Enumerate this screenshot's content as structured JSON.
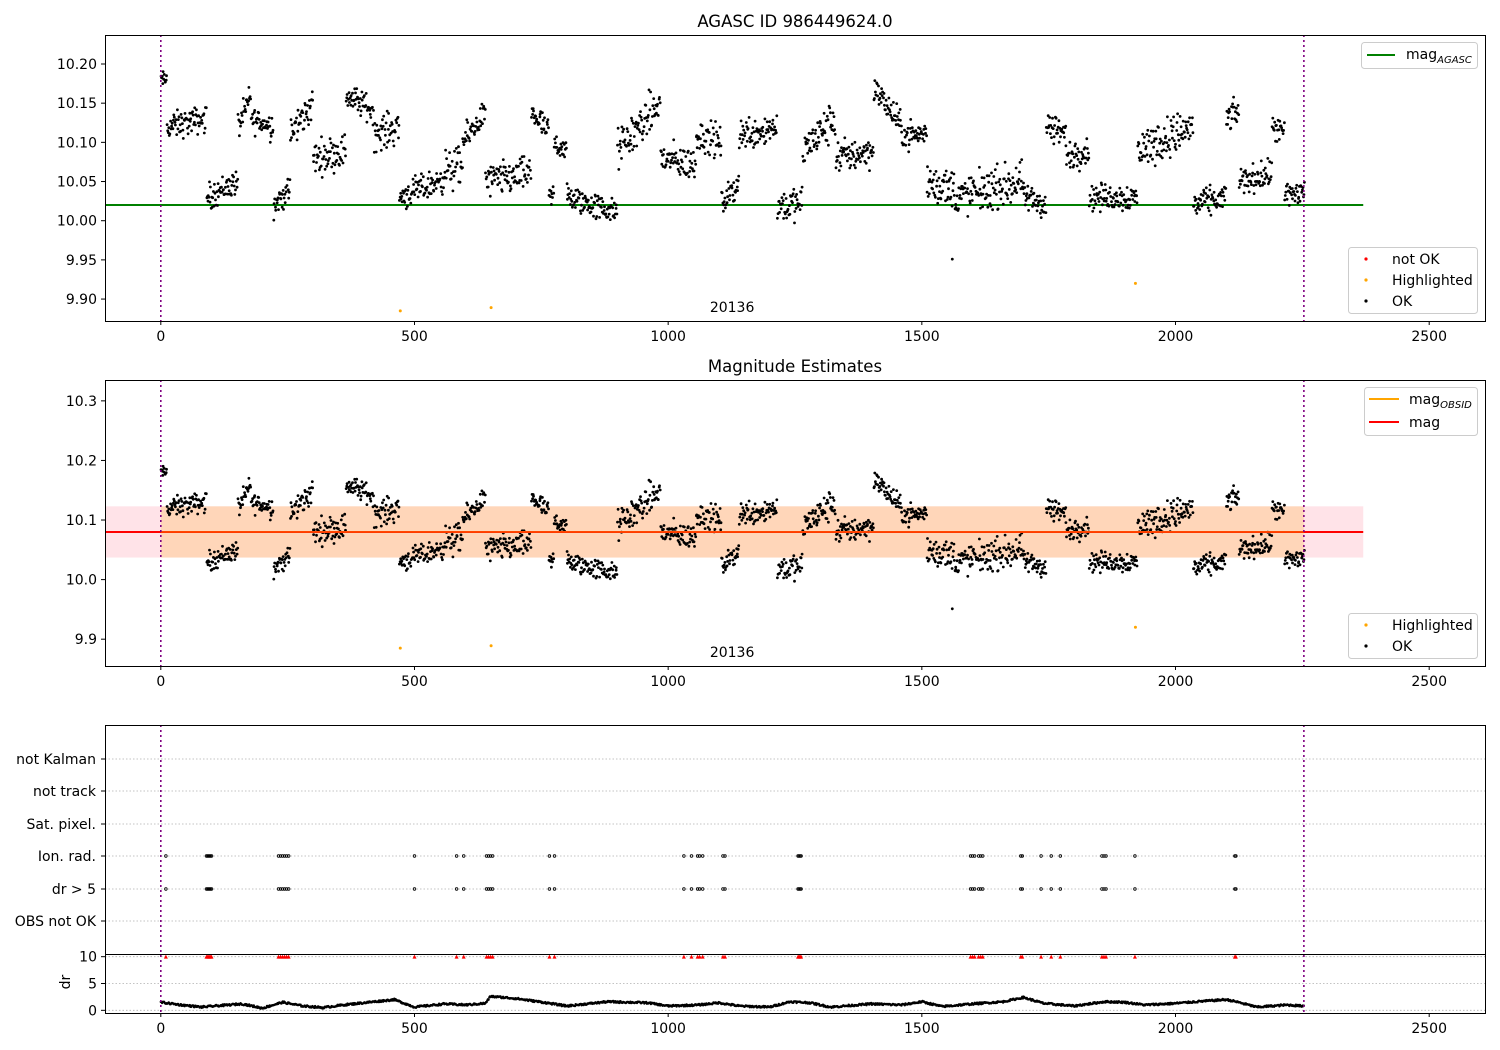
{
  "chart_data": [
    {
      "type": "scatter",
      "title": "AGASC ID 986449624.0",
      "xlabel": "",
      "ylabel": "",
      "xlim": [
        -110,
        2610
      ],
      "ylim": [
        9.872,
        10.237
      ],
      "xticks": [
        0,
        500,
        1000,
        1500,
        2000,
        2500
      ],
      "xtick_labels": [
        "0",
        "500",
        "1000",
        "1500",
        "2000",
        "2500"
      ],
      "yticks": [
        9.9,
        9.95,
        10.0,
        10.05,
        10.1,
        10.15,
        10.2
      ],
      "ytick_labels": [
        "9.90",
        "9.95",
        "10.00",
        "10.05",
        "10.10",
        "10.15",
        "10.20"
      ],
      "grid": false,
      "hline": {
        "name": "mag_AGASC",
        "value": 10.02,
        "x_range": [
          -110,
          2370
        ],
        "color": "#008000"
      },
      "obsid_boundaries": [
        0,
        2253
      ],
      "obsid_label": {
        "text": "20136",
        "x": 1126
      },
      "legend_upper": {
        "placement": "upper right",
        "entries": [
          {
            "label": "mag",
            "subscript": "AGASC",
            "kind": "line",
            "color": "#008000"
          }
        ]
      },
      "legend_lower": {
        "placement": "lower right",
        "entries": [
          {
            "label": "not OK",
            "kind": "point",
            "color": "#ff0000"
          },
          {
            "label": "Highlighted",
            "kind": "point",
            "color": "#ffa500"
          },
          {
            "label": "OK",
            "kind": "point",
            "color": "#000000"
          }
        ]
      },
      "series": [
        {
          "name": "Highlighted",
          "color": "#ffa500",
          "x": [
            472,
            651,
            1921
          ],
          "y": [
            9.885,
            9.889,
            9.92
          ]
        },
        {
          "name": "OK",
          "color": "#000000",
          "outlier": {
            "x": 1560,
            "y": 9.951
          },
          "segments": [
            {
              "x": [
                0,
                12
              ],
              "y": [
                10.18,
                10.18
              ],
              "spread": 0.012
            },
            {
              "x": [
                12,
                90
              ],
              "y": [
                10.12,
                10.13
              ],
              "spread": 0.02
            },
            {
              "x": [
                90,
                152
              ],
              "y": [
                10.03,
                10.05
              ],
              "spread": 0.02
            },
            {
              "x": [
                152,
                178
              ],
              "y": [
                10.12,
                10.16
              ],
              "spread": 0.02
            },
            {
              "x": [
                178,
                222
              ],
              "y": [
                10.13,
                10.12
              ],
              "spread": 0.02
            },
            {
              "x": [
                222,
                255
              ],
              "y": [
                10.02,
                10.04
              ],
              "spread": 0.02
            },
            {
              "x": [
                255,
                300
              ],
              "y": [
                10.11,
                10.15
              ],
              "spread": 0.025
            },
            {
              "x": [
                300,
                365
              ],
              "y": [
                10.08,
                10.09
              ],
              "spread": 0.025
            },
            {
              "x": [
                365,
                420
              ],
              "y": [
                10.16,
                10.14
              ],
              "spread": 0.02
            },
            {
              "x": [
                420,
                470
              ],
              "y": [
                10.11,
                10.12
              ],
              "spread": 0.025
            },
            {
              "x": [
                470,
                550
              ],
              "y": [
                10.03,
                10.05
              ],
              "spread": 0.02
            },
            {
              "x": [
                550,
                595
              ],
              "y": [
                10.06,
                10.07
              ],
              "spread": 0.03
            },
            {
              "x": [
                595,
                640
              ],
              "y": [
                10.1,
                10.14
              ],
              "spread": 0.02
            },
            {
              "x": [
                640,
                730
              ],
              "y": [
                10.05,
                10.06
              ],
              "spread": 0.025
            },
            {
              "x": [
                730,
                765
              ],
              "y": [
                10.14,
                10.11
              ],
              "spread": 0.02
            },
            {
              "x": [
                765,
                775
              ],
              "y": [
                10.03,
                10.03
              ],
              "spread": 0.02
            },
            {
              "x": [
                775,
                800
              ],
              "y": [
                10.1,
                10.09
              ],
              "spread": 0.02
            },
            {
              "x": [
                800,
                900
              ],
              "y": [
                10.03,
                10.01
              ],
              "spread": 0.02
            },
            {
              "x": [
                900,
                985
              ],
              "y": [
                10.09,
                10.15
              ],
              "spread": 0.03
            },
            {
              "x": [
                985,
                1055
              ],
              "y": [
                10.08,
                10.07
              ],
              "spread": 0.025
            },
            {
              "x": [
                1055,
                1105
              ],
              "y": [
                10.11,
                10.1
              ],
              "spread": 0.025
            },
            {
              "x": [
                1105,
                1140
              ],
              "y": [
                10.02,
                10.05
              ],
              "spread": 0.02
            },
            {
              "x": [
                1140,
                1215
              ],
              "y": [
                10.11,
                10.12
              ],
              "spread": 0.025
            },
            {
              "x": [
                1215,
                1265
              ],
              "y": [
                10.02,
                10.02
              ],
              "spread": 0.025
            },
            {
              "x": [
                1265,
                1330
              ],
              "y": [
                10.09,
                10.13
              ],
              "spread": 0.03
            },
            {
              "x": [
                1330,
                1405
              ],
              "y": [
                10.08,
                10.09
              ],
              "spread": 0.025
            },
            {
              "x": [
                1405,
                1460
              ],
              "y": [
                10.17,
                10.12
              ],
              "spread": 0.02
            },
            {
              "x": [
                1460,
                1510
              ],
              "y": [
                10.11,
                10.11
              ],
              "spread": 0.02
            },
            {
              "x": [
                1510,
                1565
              ],
              "y": [
                10.05,
                10.04
              ],
              "spread": 0.03
            },
            {
              "x": [
                1565,
                1700
              ],
              "y": [
                10.03,
                10.05
              ],
              "spread": 0.03
            },
            {
              "x": [
                1700,
                1745
              ],
              "y": [
                10.03,
                10.02
              ],
              "spread": 0.02
            },
            {
              "x": [
                1745,
                1785
              ],
              "y": [
                10.12,
                10.11
              ],
              "spread": 0.025
            },
            {
              "x": [
                1785,
                1830
              ],
              "y": [
                10.08,
                10.09
              ],
              "spread": 0.02
            },
            {
              "x": [
                1830,
                1925
              ],
              "y": [
                10.03,
                10.03
              ],
              "spread": 0.02
            },
            {
              "x": [
                1925,
                2035
              ],
              "y": [
                10.09,
                10.12
              ],
              "spread": 0.03
            },
            {
              "x": [
                2035,
                2100
              ],
              "y": [
                10.02,
                10.03
              ],
              "spread": 0.02
            },
            {
              "x": [
                2100,
                2125
              ],
              "y": [
                10.13,
                10.14
              ],
              "spread": 0.02
            },
            {
              "x": [
                2125,
                2190
              ],
              "y": [
                10.05,
                10.06
              ],
              "spread": 0.02
            },
            {
              "x": [
                2190,
                2215
              ],
              "y": [
                10.12,
                10.11
              ],
              "spread": 0.02
            },
            {
              "x": [
                2215,
                2255
              ],
              "y": [
                10.03,
                10.04
              ],
              "spread": 0.025
            }
          ]
        }
      ]
    },
    {
      "type": "scatter",
      "title": "Magnitude Estimates",
      "xlabel": "",
      "ylabel": "",
      "xlim": [
        -110,
        2610
      ],
      "ylim": [
        9.855,
        10.335
      ],
      "xticks": [
        0,
        500,
        1000,
        1500,
        2000,
        2500
      ],
      "xtick_labels": [
        "0",
        "500",
        "1000",
        "1500",
        "2000",
        "2500"
      ],
      "yticks": [
        9.9,
        10.0,
        10.1,
        10.2,
        10.3
      ],
      "ytick_labels": [
        "9.9",
        "10.0",
        "10.1",
        "10.2",
        "10.3"
      ],
      "grid": false,
      "hline": {
        "name": "mag",
        "value": 10.08,
        "x_range": [
          -110,
          2370
        ],
        "color": "#ff0000"
      },
      "band_red": {
        "low": 10.037,
        "high": 10.123,
        "x_range": [
          -110,
          2370
        ],
        "color": "#ffc0cb"
      },
      "band_orange": {
        "low": 10.037,
        "high": 10.123,
        "x_range": [
          0,
          2253
        ],
        "color": "#ffa500"
      },
      "obsid_mag_line": {
        "value": 10.08,
        "x_range": [
          0,
          2253
        ],
        "color": "#ffa500"
      },
      "obsid_boundaries": [
        0,
        2253
      ],
      "obsid_label": {
        "text": "20136",
        "x": 1126
      },
      "legend_upper": {
        "placement": "upper right",
        "entries": [
          {
            "label": "mag",
            "subscript": "OBSID",
            "kind": "line",
            "color": "#ffa500"
          },
          {
            "label": "mag",
            "kind": "line",
            "color": "#ff0000"
          }
        ]
      },
      "legend_lower": {
        "placement": "lower right",
        "entries": [
          {
            "label": "Highlighted",
            "kind": "point",
            "color": "#ffa500"
          },
          {
            "label": "OK",
            "kind": "point",
            "color": "#000000"
          }
        ]
      },
      "series_ref": "same observations as AGASC ID 986449624.0 panel"
    },
    {
      "type": "scatter",
      "title": "",
      "xlim": [
        -110,
        2610
      ],
      "flag_categories": [
        "not Kalman",
        "not track",
        "Sat. pixel.",
        "Ion. rad.",
        "dr > 5",
        "OBS not OK"
      ],
      "flags": {
        "Ion. rad.": [
          10,
          90,
          92,
          94,
          96,
          98,
          100,
          232,
          236,
          240,
          244,
          248,
          252,
          500,
          583,
          597,
          642,
          646,
          650,
          654,
          766,
          776,
          1031,
          1046,
          1058,
          1062,
          1068,
          1108,
          1112,
          1256,
          1258,
          1260,
          1262,
          1596,
          1600,
          1604,
          1612,
          1616,
          1620,
          1695,
          1698,
          1735,
          1755,
          1773,
          1855,
          1859,
          1863,
          1920,
          2117,
          2119
        ],
        "dr > 5": [
          10,
          90,
          92,
          94,
          96,
          98,
          100,
          232,
          236,
          240,
          244,
          248,
          252,
          500,
          583,
          597,
          642,
          646,
          650,
          654,
          766,
          776,
          1031,
          1046,
          1058,
          1062,
          1068,
          1108,
          1112,
          1256,
          1258,
          1260,
          1262,
          1596,
          1600,
          1604,
          1612,
          1616,
          1620,
          1695,
          1698,
          1735,
          1755,
          1773,
          1855,
          1859,
          1863,
          1920,
          2117,
          2119
        ]
      },
      "obsid_boundaries": [
        0,
        2253
      ],
      "xticks": [
        0,
        500,
        1000,
        1500,
        2000,
        2500
      ],
      "xtick_labels": [
        "0",
        "500",
        "1000",
        "1500",
        "2000",
        "2500"
      ]
    },
    {
      "type": "line",
      "title": "",
      "xlabel": "",
      "ylabel": "dr",
      "xlim": [
        -110,
        2610
      ],
      "ylim": [
        -0.5,
        10.5
      ],
      "yticks": [
        0,
        5,
        10
      ],
      "ytick_labels": [
        "0",
        "5",
        "10"
      ],
      "xticks": [
        0,
        500,
        1000,
        1500,
        2000,
        2500
      ],
      "xtick_labels": [
        "0",
        "500",
        "1000",
        "1500",
        "2000",
        "2500"
      ],
      "grid": true,
      "clipped_marker_value": 10,
      "clipped_marker_color": "#ff0000",
      "obsid_boundaries": [
        0,
        2253
      ],
      "dr_profile": {
        "x": [
          0,
          40,
          80,
          120,
          160,
          200,
          240,
          280,
          320,
          360,
          400,
          460,
          500,
          560,
          600,
          640,
          650,
          700,
          760,
          800,
          880,
          960,
          1000,
          1060,
          1100,
          1140,
          1200,
          1240,
          1280,
          1320,
          1400,
          1460,
          1500,
          1540,
          1600,
          1660,
          1700,
          1740,
          1800,
          1860,
          1900,
          1940,
          2000,
          2040,
          2100,
          2120,
          2160,
          2220,
          2253
        ],
        "y": [
          1.5,
          1.0,
          0.6,
          0.9,
          1.2,
          0.4,
          1.5,
          0.8,
          0.5,
          1.0,
          1.4,
          2.0,
          0.6,
          1.2,
          1.0,
          1.3,
          2.6,
          2.2,
          1.4,
          0.8,
          1.6,
          1.4,
          0.8,
          1.0,
          1.4,
          0.8,
          0.6,
          1.6,
          1.4,
          0.6,
          1.2,
          1.0,
          1.6,
          0.7,
          1.2,
          1.6,
          2.4,
          1.3,
          0.8,
          1.6,
          1.5,
          1.0,
          1.3,
          1.6,
          2.0,
          1.6,
          0.6,
          1.0,
          0.8
        ]
      }
    }
  ]
}
